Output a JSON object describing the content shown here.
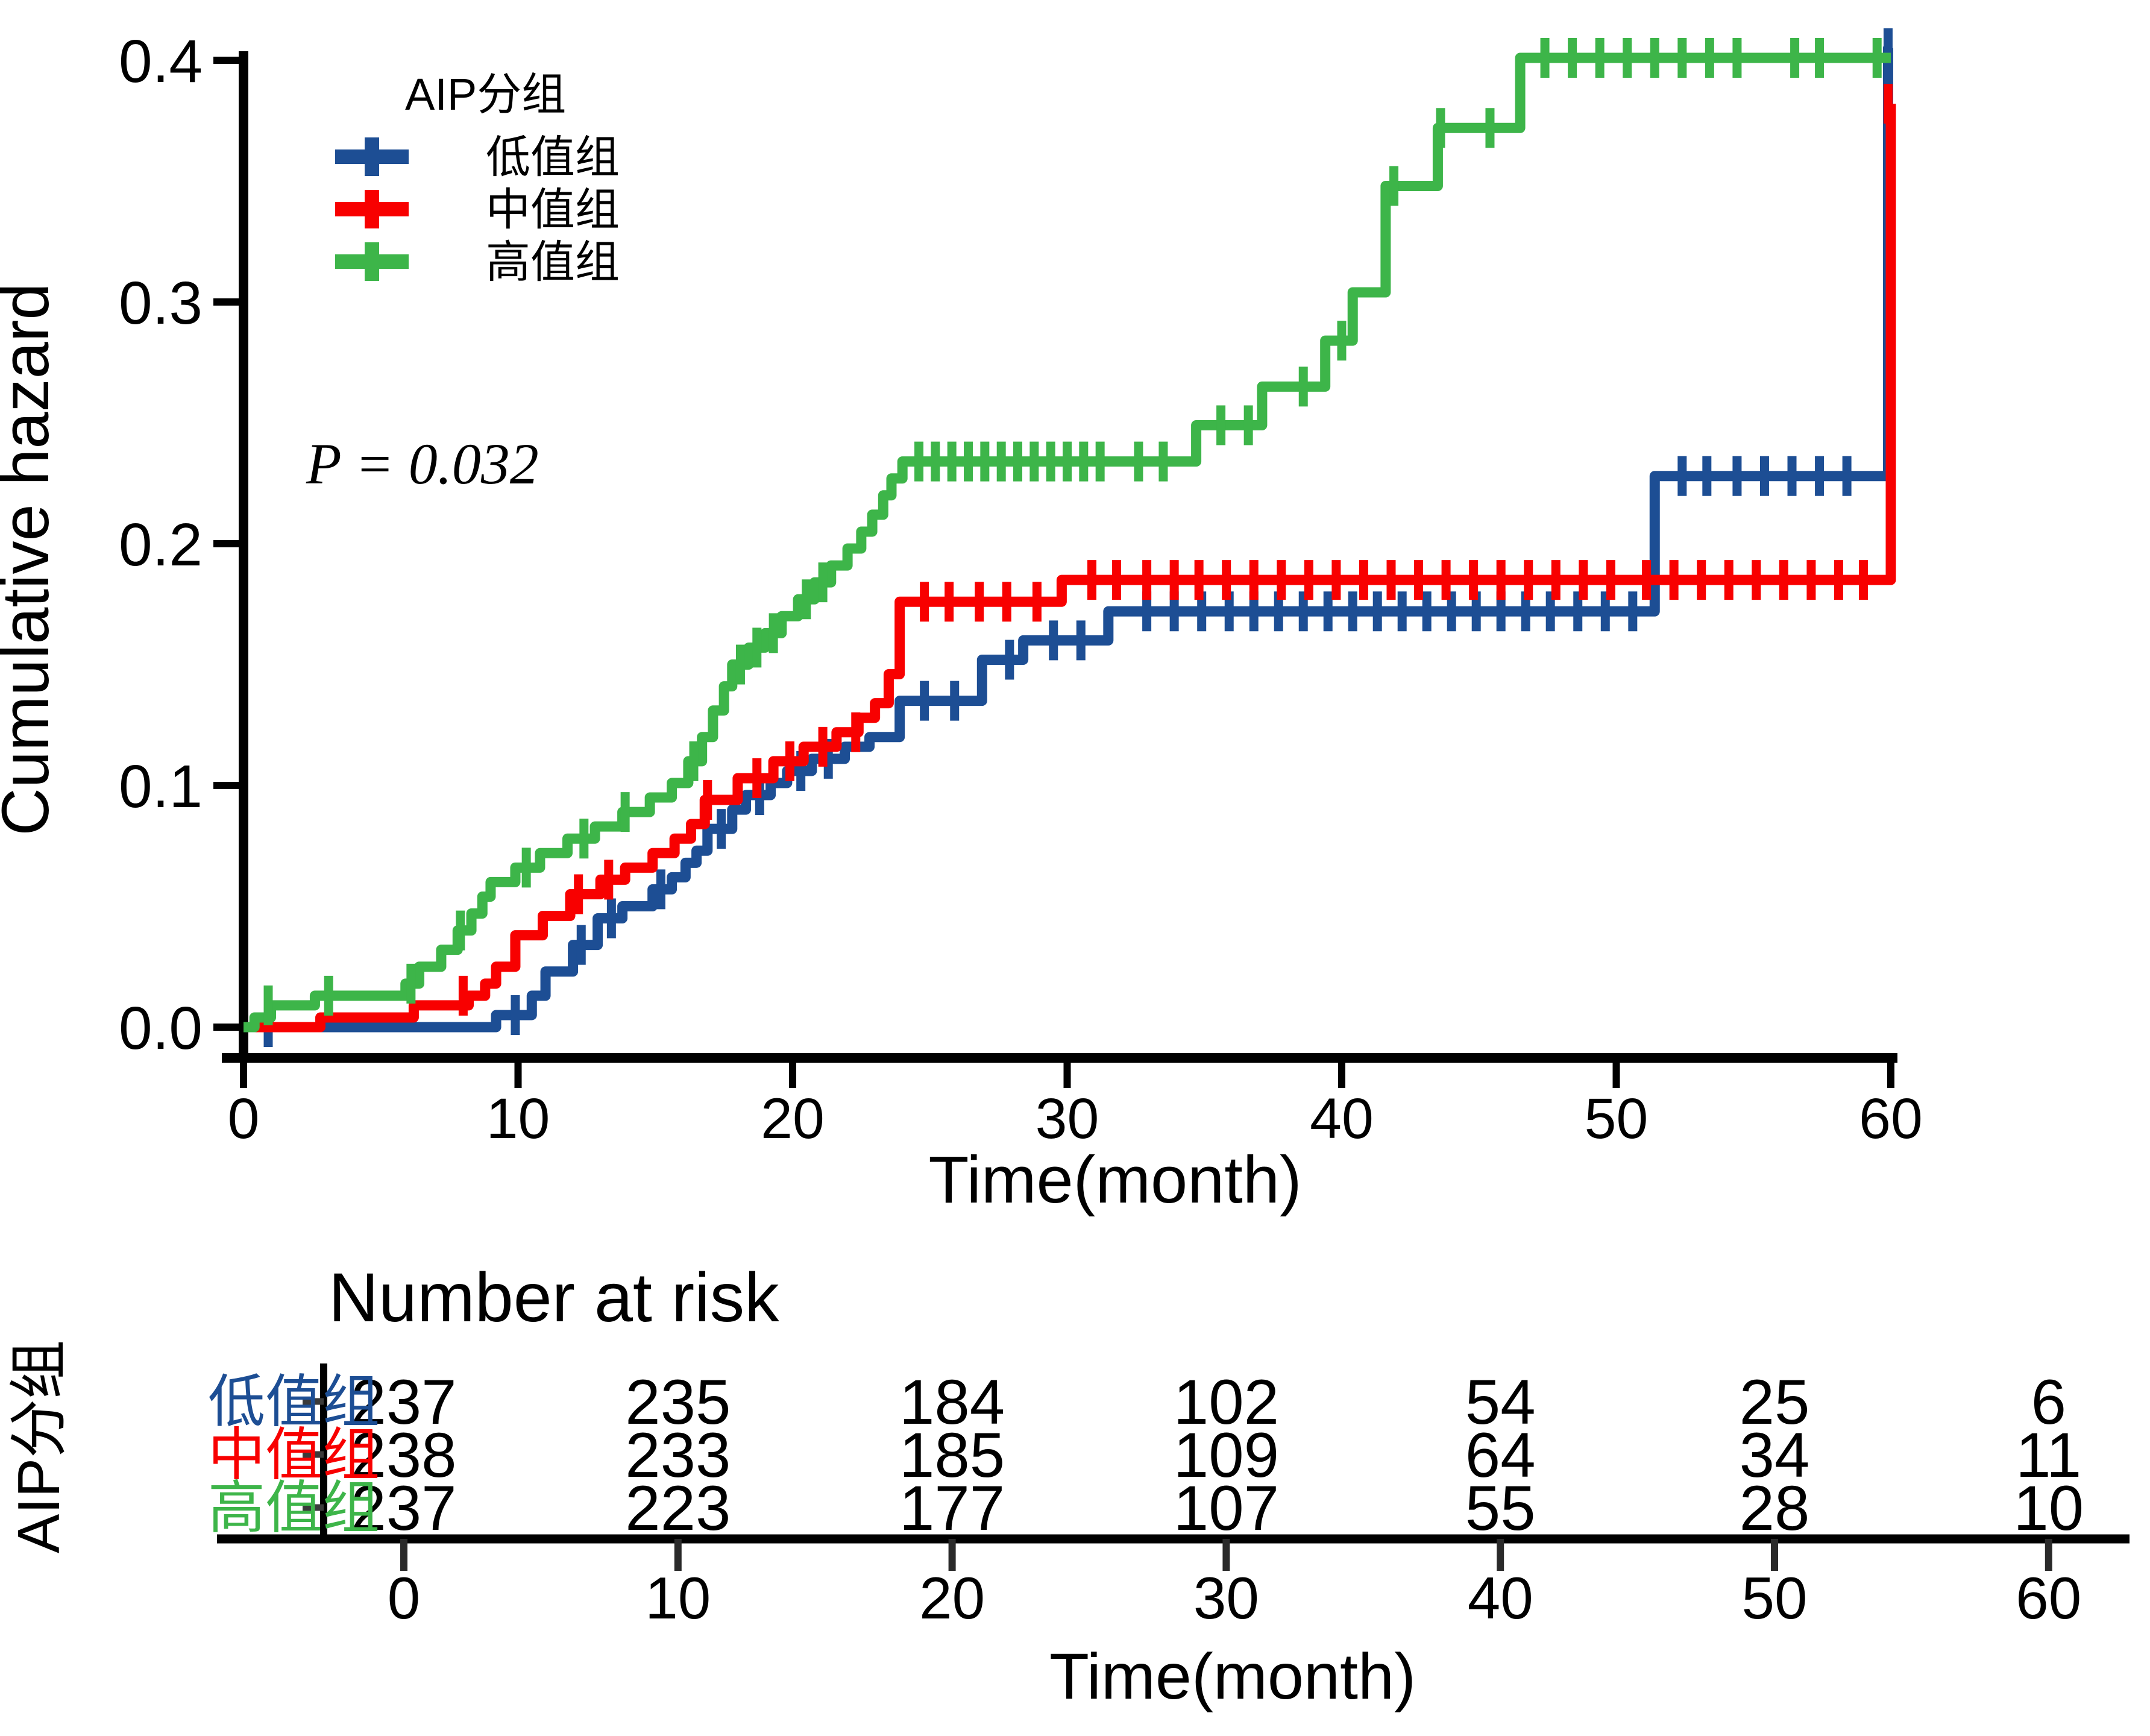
{
  "figure": {
    "background_color": "#ffffff",
    "p_value_label": "P = 0.032",
    "colors": {
      "low_group": "#1d4e94",
      "mid_group": "#f80000",
      "high_group": "#3db549",
      "axis": "#000000"
    },
    "y_axis": {
      "label": "Cumulative hazard",
      "tick_labels": [
        "0.0",
        "0.1",
        "0.2",
        "0.3",
        "0.4"
      ],
      "tick_values": [
        0,
        0.1,
        0.2,
        0.3,
        0.4
      ]
    },
    "x_axis": {
      "label": "Time(month)",
      "tick_labels": [
        "0",
        "10",
        "20",
        "30",
        "40",
        "50",
        "60"
      ],
      "tick_values": [
        0,
        10,
        20,
        30,
        40,
        50,
        60
      ]
    },
    "legend": {
      "title": "AIP分组",
      "items": [
        {
          "label": "低值组",
          "color": "#1d4e94"
        },
        {
          "label": "中值组",
          "color": "#f80000"
        },
        {
          "label": "高值组",
          "color": "#3db549"
        }
      ]
    },
    "chart_data": {
      "type": "line",
      "subtype": "step-cumulative-hazard",
      "xlabel": "Time(month)",
      "ylabel": "Cumulative hazard",
      "xlim": [
        0,
        62
      ],
      "ylim": [
        0,
        0.42
      ],
      "grid": false,
      "legend_position": "inside-top-left",
      "annotations": [
        {
          "text": "P = 0.032",
          "x_month": 2.5,
          "y_value": 0.228
        }
      ],
      "series": [
        {
          "name": "低值组",
          "color": "#1d4e94",
          "end": 60,
          "steps": [
            [
              0,
              0
            ],
            [
              9.2,
              0.005
            ],
            [
              10.5,
              0.013
            ],
            [
              11.0,
              0.023
            ],
            [
              12.0,
              0.034
            ],
            [
              12.9,
              0.045
            ],
            [
              13.8,
              0.05
            ],
            [
              14.9,
              0.057
            ],
            [
              15.6,
              0.062
            ],
            [
              16.1,
              0.068
            ],
            [
              16.5,
              0.073
            ],
            [
              16.9,
              0.082
            ],
            [
              17.8,
              0.09
            ],
            [
              18.3,
              0.096
            ],
            [
              19.2,
              0.101
            ],
            [
              19.8,
              0.106
            ],
            [
              20.7,
              0.111
            ],
            [
              21.9,
              0.116
            ],
            [
              22.8,
              0.12
            ],
            [
              23.9,
              0.135
            ],
            [
              26.9,
              0.152
            ],
            [
              28.4,
              0.16
            ],
            [
              31.5,
              0.172
            ],
            [
              51.4,
              0.228
            ],
            [
              59.9,
              0.405
            ]
          ],
          "censors": [
            [
              0.9,
              0.0
            ],
            [
              9.9,
              0.005
            ],
            [
              12.3,
              0.034
            ],
            [
              13.4,
              0.045
            ],
            [
              15.2,
              0.057
            ],
            [
              17.4,
              0.082
            ],
            [
              18.8,
              0.096
            ],
            [
              20.3,
              0.106
            ],
            [
              21.3,
              0.111
            ],
            [
              24.8,
              0.135
            ],
            [
              25.9,
              0.135
            ],
            [
              27.9,
              0.152
            ],
            [
              29.5,
              0.16
            ],
            [
              30.5,
              0.16
            ],
            [
              32.9,
              0.172
            ],
            [
              33.9,
              0.172
            ],
            [
              34.9,
              0.172
            ],
            [
              35.9,
              0.172
            ],
            [
              36.8,
              0.172
            ],
            [
              37.7,
              0.172
            ],
            [
              38.6,
              0.172
            ],
            [
              39.5,
              0.172
            ],
            [
              40.4,
              0.172
            ],
            [
              41.3,
              0.172
            ],
            [
              42.2,
              0.172
            ],
            [
              43.1,
              0.172
            ],
            [
              44.0,
              0.172
            ],
            [
              44.9,
              0.172
            ],
            [
              45.8,
              0.172
            ],
            [
              46.7,
              0.172
            ],
            [
              47.6,
              0.172
            ],
            [
              48.6,
              0.172
            ],
            [
              49.6,
              0.172
            ],
            [
              50.6,
              0.172
            ],
            [
              52.4,
              0.228
            ],
            [
              53.3,
              0.228
            ],
            [
              54.4,
              0.228
            ],
            [
              55.4,
              0.228
            ],
            [
              56.4,
              0.228
            ],
            [
              57.4,
              0.228
            ],
            [
              58.4,
              0.228
            ],
            [
              59.9,
              0.405
            ]
          ]
        },
        {
          "name": "中值组",
          "color": "#f80000",
          "end": 60,
          "steps": [
            [
              0,
              0
            ],
            [
              2.8,
              0.004
            ],
            [
              6.2,
              0.009
            ],
            [
              8.2,
              0.013
            ],
            [
              8.8,
              0.018
            ],
            [
              9.2,
              0.025
            ],
            [
              9.9,
              0.038
            ],
            [
              10.9,
              0.046
            ],
            [
              11.9,
              0.055
            ],
            [
              13.0,
              0.061
            ],
            [
              13.9,
              0.066
            ],
            [
              14.9,
              0.072
            ],
            [
              15.7,
              0.078
            ],
            [
              16.3,
              0.084
            ],
            [
              16.8,
              0.094
            ],
            [
              18.0,
              0.103
            ],
            [
              19.3,
              0.11
            ],
            [
              20.4,
              0.116
            ],
            [
              21.6,
              0.122
            ],
            [
              22.4,
              0.128
            ],
            [
              23.0,
              0.134
            ],
            [
              23.5,
              0.146
            ],
            [
              23.9,
              0.176
            ],
            [
              29.8,
              0.185
            ],
            [
              60,
              0.382
            ]
          ],
          "censors": [
            [
              8.0,
              0.013
            ],
            [
              12.2,
              0.055
            ],
            [
              13.3,
              0.061
            ],
            [
              16.9,
              0.094
            ],
            [
              18.7,
              0.103
            ],
            [
              19.9,
              0.11
            ],
            [
              21.1,
              0.116
            ],
            [
              22.3,
              0.122
            ],
            [
              24.8,
              0.176
            ],
            [
              25.7,
              0.176
            ],
            [
              26.8,
              0.176
            ],
            [
              27.8,
              0.176
            ],
            [
              28.9,
              0.176
            ],
            [
              30.9,
              0.185
            ],
            [
              31.8,
              0.185
            ],
            [
              32.9,
              0.185
            ],
            [
              33.9,
              0.185
            ],
            [
              34.8,
              0.185
            ],
            [
              35.8,
              0.185
            ],
            [
              36.8,
              0.185
            ],
            [
              37.8,
              0.185
            ],
            [
              38.8,
              0.185
            ],
            [
              39.8,
              0.185
            ],
            [
              40.8,
              0.185
            ],
            [
              41.8,
              0.185
            ],
            [
              42.8,
              0.185
            ],
            [
              43.8,
              0.185
            ],
            [
              44.8,
              0.185
            ],
            [
              45.8,
              0.185
            ],
            [
              46.8,
              0.185
            ],
            [
              47.8,
              0.185
            ],
            [
              48.8,
              0.185
            ],
            [
              49.8,
              0.185
            ],
            [
              51.1,
              0.185
            ],
            [
              52.1,
              0.185
            ],
            [
              53.1,
              0.185
            ],
            [
              54.1,
              0.185
            ],
            [
              55.1,
              0.185
            ],
            [
              56.1,
              0.185
            ],
            [
              57.1,
              0.185
            ],
            [
              58.1,
              0.185
            ],
            [
              59.0,
              0.185
            ],
            [
              59.9,
              0.382
            ]
          ]
        },
        {
          "name": "高值组",
          "color": "#3db549",
          "end": 60,
          "steps": [
            [
              0,
              0
            ],
            [
              0.4,
              0.004
            ],
            [
              1.0,
              0.009
            ],
            [
              2.6,
              0.013
            ],
            [
              5.9,
              0.018
            ],
            [
              6.4,
              0.025
            ],
            [
              7.2,
              0.032
            ],
            [
              7.8,
              0.04
            ],
            [
              8.3,
              0.047
            ],
            [
              8.7,
              0.054
            ],
            [
              9.0,
              0.06
            ],
            [
              9.9,
              0.066
            ],
            [
              10.8,
              0.072
            ],
            [
              11.8,
              0.078
            ],
            [
              12.8,
              0.083
            ],
            [
              13.8,
              0.089
            ],
            [
              14.8,
              0.095
            ],
            [
              15.6,
              0.101
            ],
            [
              16.2,
              0.11
            ],
            [
              16.7,
              0.12
            ],
            [
              17.1,
              0.131
            ],
            [
              17.5,
              0.141
            ],
            [
              17.8,
              0.15
            ],
            [
              18.4,
              0.157
            ],
            [
              19.0,
              0.163
            ],
            [
              19.6,
              0.17
            ],
            [
              20.2,
              0.177
            ],
            [
              20.8,
              0.184
            ],
            [
              21.4,
              0.191
            ],
            [
              22.0,
              0.198
            ],
            [
              22.5,
              0.205
            ],
            [
              22.9,
              0.212
            ],
            [
              23.3,
              0.22
            ],
            [
              23.6,
              0.227
            ],
            [
              24.0,
              0.234
            ],
            [
              34.7,
              0.249
            ],
            [
              37.1,
              0.265
            ],
            [
              39.4,
              0.284
            ],
            [
              40.4,
              0.304
            ],
            [
              41.6,
              0.348
            ],
            [
              43.5,
              0.372
            ],
            [
              46.5,
              0.401
            ]
          ],
          "censors": [
            [
              0.9,
              0.009
            ],
            [
              3.1,
              0.013
            ],
            [
              6.1,
              0.018
            ],
            [
              7.9,
              0.04
            ],
            [
              10.3,
              0.066
            ],
            [
              12.4,
              0.078
            ],
            [
              13.9,
              0.089
            ],
            [
              16.4,
              0.11
            ],
            [
              18.1,
              0.15
            ],
            [
              18.7,
              0.157
            ],
            [
              19.3,
              0.163
            ],
            [
              20.5,
              0.177
            ],
            [
              21.1,
              0.184
            ],
            [
              24.6,
              0.234
            ],
            [
              25.2,
              0.234
            ],
            [
              25.8,
              0.234
            ],
            [
              26.4,
              0.234
            ],
            [
              27.0,
              0.234
            ],
            [
              27.6,
              0.234
            ],
            [
              28.2,
              0.234
            ],
            [
              28.8,
              0.234
            ],
            [
              29.4,
              0.234
            ],
            [
              30.0,
              0.234
            ],
            [
              30.6,
              0.234
            ],
            [
              31.2,
              0.234
            ],
            [
              32.6,
              0.234
            ],
            [
              33.5,
              0.234
            ],
            [
              35.6,
              0.249
            ],
            [
              36.6,
              0.249
            ],
            [
              38.6,
              0.265
            ],
            [
              40.0,
              0.284
            ],
            [
              41.9,
              0.348
            ],
            [
              43.6,
              0.372
            ],
            [
              45.4,
              0.372
            ],
            [
              47.4,
              0.401
            ],
            [
              48.4,
              0.401
            ],
            [
              49.4,
              0.401
            ],
            [
              50.4,
              0.401
            ],
            [
              51.4,
              0.401
            ],
            [
              52.4,
              0.401
            ],
            [
              53.4,
              0.401
            ],
            [
              54.4,
              0.401
            ],
            [
              56.5,
              0.401
            ],
            [
              57.4,
              0.401
            ],
            [
              59.5,
              0.401
            ]
          ]
        }
      ]
    },
    "risk_table": {
      "title": "Number at risk",
      "group_axis_label": "AIP分组",
      "xlabel": "Time(month)",
      "x_tick_labels": [
        "0",
        "10",
        "20",
        "30",
        "40",
        "50",
        "60"
      ],
      "x_tick_values": [
        0,
        10,
        20,
        30,
        40,
        50,
        60
      ],
      "rows": [
        {
          "label": "低值组",
          "color": "#1d4e94",
          "values": [
            "237",
            "235",
            "184",
            "102",
            "54",
            "25",
            "6"
          ]
        },
        {
          "label": "中值组",
          "color": "#f80000",
          "values": [
            "238",
            "233",
            "185",
            "109",
            "64",
            "34",
            "11"
          ]
        },
        {
          "label": "高值组",
          "color": "#3db549",
          "values": [
            "237",
            "223",
            "177",
            "107",
            "55",
            "28",
            "10"
          ]
        }
      ]
    }
  }
}
